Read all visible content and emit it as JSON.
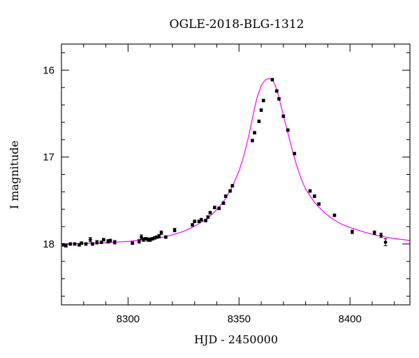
{
  "chart_data": {
    "type": "scatter",
    "title": "OGLE-2018-BLG-1312",
    "xlabel": "HJD - 2450000",
    "ylabel": "I magnitude",
    "xlim": [
      8270,
      8427
    ],
    "ylim": [
      18.7,
      15.7
    ],
    "y_inverted": true,
    "x_ticks": [
      8300,
      8350,
      8400
    ],
    "x_tick_labels": [
      "8300",
      "8350",
      "8400"
    ],
    "y_ticks": [
      16,
      17,
      18
    ],
    "y_tick_labels": [
      "16",
      "17",
      "18"
    ],
    "grid": false,
    "colors": {
      "points": "#000000",
      "model": "#ff00ff",
      "frame": "#000000"
    },
    "series": [
      {
        "kind": "points",
        "x": [
          8271,
          8272,
          8274,
          8276,
          8278,
          8279,
          8281,
          8283,
          8284,
          8286,
          8288,
          8289,
          8291,
          8292,
          8294,
          8302,
          8305,
          8306,
          8307,
          8308,
          8309,
          8310,
          8311,
          8312,
          8313,
          8314,
          8315,
          8317,
          8321,
          8329,
          8330,
          8332,
          8333,
          8335,
          8336,
          8337,
          8339,
          8341,
          8343,
          8344,
          8346,
          8347,
          8356,
          8357,
          8359,
          8360,
          8361,
          8365,
          8367,
          8368,
          8370,
          8372,
          8375,
          8382,
          8384,
          8386,
          8393,
          8401,
          8411,
          8414,
          8416
        ],
        "y": [
          18.01,
          18.02,
          18.0,
          18.0,
          18.01,
          17.99,
          18.0,
          17.95,
          18.0,
          17.98,
          17.98,
          17.95,
          17.97,
          17.96,
          17.98,
          17.99,
          17.97,
          17.92,
          17.95,
          17.94,
          17.95,
          17.95,
          17.94,
          17.93,
          17.92,
          17.91,
          17.87,
          17.92,
          17.84,
          17.78,
          17.74,
          17.74,
          17.72,
          17.73,
          17.69,
          17.64,
          17.58,
          17.59,
          17.53,
          17.45,
          17.39,
          17.33,
          16.81,
          16.72,
          16.59,
          16.46,
          16.35,
          16.11,
          16.24,
          16.33,
          16.53,
          16.69,
          16.96,
          17.39,
          17.45,
          17.54,
          17.67,
          17.86,
          17.87,
          17.9,
          17.98
        ],
        "err": [
          0.015,
          0.015,
          0.015,
          0.015,
          0.015,
          0.015,
          0.015,
          0.025,
          0.015,
          0.02,
          0.015,
          0.015,
          0.02,
          0.015,
          0.02,
          0.015,
          0.02,
          0.025,
          0.02,
          0.015,
          0.02,
          0.02,
          0.015,
          0.015,
          0.015,
          0.02,
          0.02,
          0.015,
          0.02,
          0.015,
          0.015,
          0.015,
          0.015,
          0.015,
          0.015,
          0.015,
          0.015,
          0.015,
          0.015,
          0.015,
          0.015,
          0.015,
          0.015,
          0.015,
          0.015,
          0.015,
          0.015,
          0.015,
          0.015,
          0.015,
          0.015,
          0.015,
          0.015,
          0.015,
          0.015,
          0.015,
          0.015,
          0.02,
          0.02,
          0.025,
          0.04
        ]
      },
      {
        "kind": "model",
        "x": [
          8270,
          8280,
          8290,
          8300,
          8310,
          8315,
          8320,
          8325,
          8330,
          8335,
          8338,
          8341,
          8344,
          8347,
          8350,
          8352,
          8354,
          8356,
          8357,
          8358,
          8359,
          8360,
          8361,
          8362,
          8363,
          8364,
          8364.8,
          8365.5,
          8366.5,
          8367.5,
          8368.5,
          8370,
          8372,
          8374,
          8376,
          8378,
          8380,
          8384,
          8388,
          8392,
          8396,
          8400,
          8406,
          8412,
          8418,
          8427
        ],
        "y": [
          18.0,
          17.995,
          17.985,
          17.97,
          17.945,
          17.925,
          17.895,
          17.855,
          17.795,
          17.72,
          17.655,
          17.575,
          17.475,
          17.34,
          17.16,
          17.0,
          16.8,
          16.56,
          16.44,
          16.33,
          16.25,
          16.18,
          16.14,
          16.11,
          16.1,
          16.1,
          16.105,
          16.13,
          16.19,
          16.27,
          16.37,
          16.52,
          16.72,
          16.92,
          17.1,
          17.25,
          17.37,
          17.52,
          17.63,
          17.71,
          17.77,
          17.81,
          17.86,
          17.9,
          17.93,
          17.96
        ]
      }
    ]
  }
}
